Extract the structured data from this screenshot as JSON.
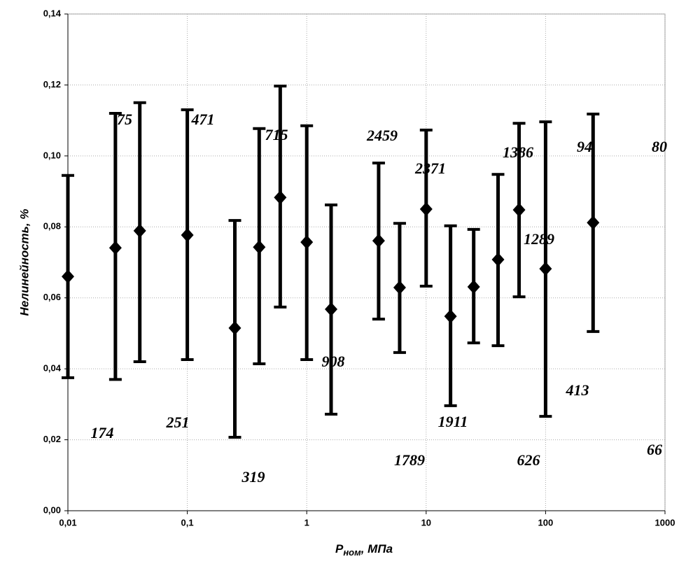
{
  "chart_data": {
    "type": "errorbar",
    "x_label": {
      "main": "P",
      "sub": "ном",
      "rest": ", МПа"
    },
    "y_label": "Нелинейность, %",
    "x": [
      0.01,
      0.025,
      0.04,
      0.1,
      0.25,
      0.4,
      0.6,
      1,
      1.6,
      4,
      6,
      10,
      16,
      25,
      40,
      60,
      100,
      250
    ],
    "values": [
      0.066,
      0.0741,
      0.0789,
      0.0777,
      0.0515,
      0.0743,
      0.0883,
      0.0757,
      0.0568,
      0.0761,
      0.0629,
      0.085,
      0.0548,
      0.0631,
      0.0708,
      0.0848,
      0.0682,
      0.0812
    ],
    "low": [
      0.0375,
      0.037,
      0.042,
      0.0426,
      0.0207,
      0.0414,
      0.0574,
      0.0426,
      0.0272,
      0.054,
      0.0446,
      0.0633,
      0.0296,
      0.0473,
      0.0465,
      0.0603,
      0.0266,
      0.0505
    ],
    "high": [
      0.0945,
      0.112,
      0.115,
      0.113,
      0.0818,
      0.1077,
      0.1197,
      0.1085,
      0.0862,
      0.098,
      0.081,
      0.1073,
      0.0803,
      0.0793,
      0.0948,
      0.1092,
      0.1096,
      0.1118
    ],
    "color": "#000000",
    "xscale": "log",
    "xlim": [
      0.01,
      1000
    ],
    "xticks": [
      {
        "value": 0.01,
        "label": "0,01"
      },
      {
        "value": 0.1,
        "label": "0,1"
      },
      1,
      10,
      100,
      1000
    ],
    "ylim": [
      0,
      0.14
    ],
    "yticks": [
      {
        "value": 0,
        "label": "0,00"
      },
      {
        "value": 0.02,
        "label": "0,02"
      },
      {
        "value": 0.04,
        "label": "0,04"
      },
      {
        "value": 0.06,
        "label": "0,06"
      },
      {
        "value": 0.08,
        "label": "0,08"
      },
      {
        "value": 0.1,
        "label": "0,10"
      },
      {
        "value": 0.12,
        "label": "0,12"
      },
      {
        "value": 0.14,
        "label": "0,14"
      }
    ],
    "grid": true,
    "annotations": [
      "75",
      "471",
      "715",
      "2459",
      "2371",
      "1386",
      "94",
      "80",
      "1289",
      "908",
      "413",
      "174",
      "251",
      "1911",
      "319",
      "1789",
      "626",
      "66"
    ]
  }
}
